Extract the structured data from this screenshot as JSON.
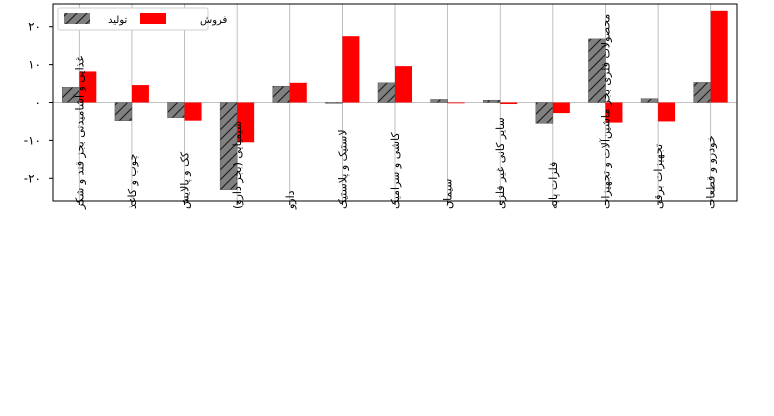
{
  "chart_data": {
    "type": "bar",
    "categories": [
      "غذایی و آشامیدنی بجز قند و شکر",
      "چوب و کاغذ",
      "کک و پالایش",
      "شیمیایی (بجز دارو)",
      "دارو",
      "لاستیک و پلاستیک",
      "کاشی و سرامیک",
      "سیمان",
      "سایر کانی غیر فلزی",
      "فلزات پایه",
      "محصولات فلزی بجز ماشین‌آلات و تجهیزات",
      "تجهیزات برقی",
      "خودرو و قطعات"
    ],
    "series": [
      {
        "name": "تولید",
        "color": "#808080",
        "pattern": "hatch",
        "values": [
          4,
          -4.8,
          -4,
          -23,
          4.3,
          0,
          5.2,
          0.8,
          0.6,
          -5.5,
          16.8,
          1,
          5.3
        ]
      },
      {
        "name": "فروش",
        "color": "#ff0000",
        "pattern": "solid",
        "values": [
          8.2,
          4.6,
          -4.8,
          -10.5,
          5.2,
          17.5,
          9.6,
          -0.2,
          -0.4,
          -2.8,
          -5.3,
          -5,
          24.2
        ]
      }
    ],
    "yticks": [
      -20,
      -10,
      0,
      10,
      20
    ],
    "ytick_labels": [
      "-۲۰",
      "-۱۰",
      "۰",
      "۱۰",
      "۲۰"
    ],
    "ylim": [
      -26,
      26
    ],
    "grid": "vertical",
    "legend_position": "top-left",
    "title": "",
    "xlabel": "",
    "ylabel": ""
  }
}
